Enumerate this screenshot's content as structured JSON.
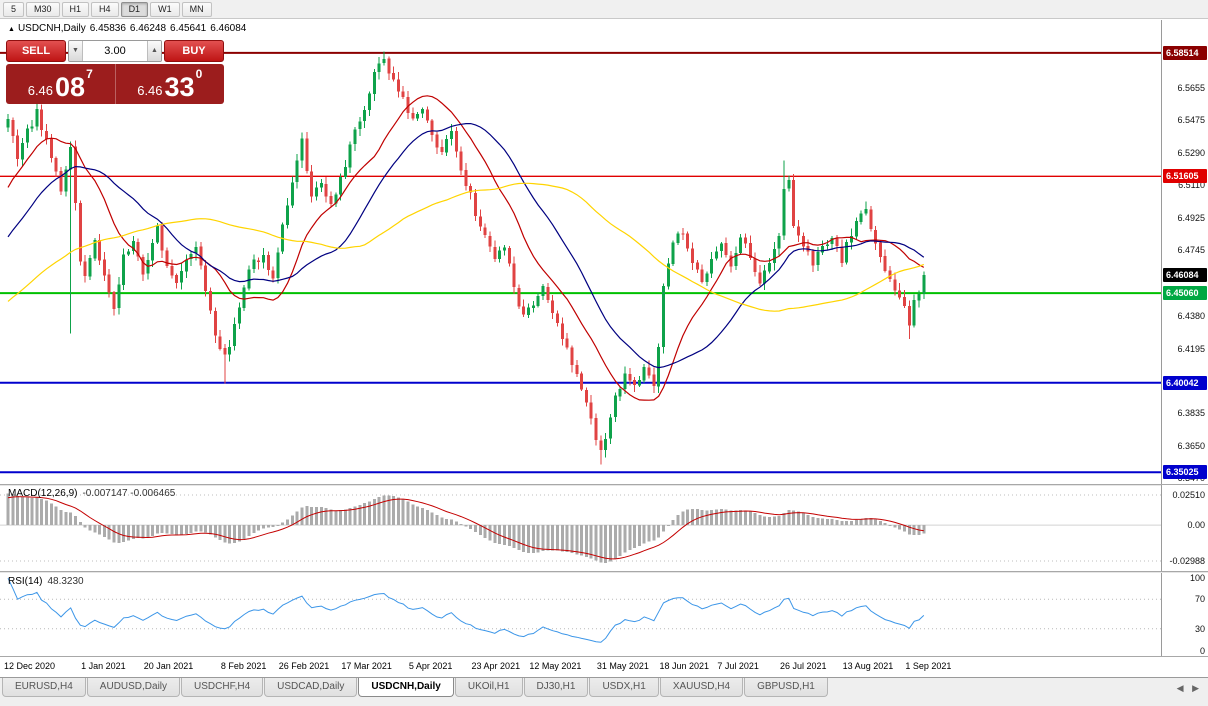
{
  "toolbar": {
    "timeframes": [
      {
        "label": "5",
        "active": false
      },
      {
        "label": "M30",
        "active": false
      },
      {
        "label": "H1",
        "active": false
      },
      {
        "label": "H4",
        "active": false
      },
      {
        "label": "D1",
        "active": true
      },
      {
        "label": "W1",
        "active": false
      },
      {
        "label": "MN",
        "active": false
      }
    ]
  },
  "chart_header": {
    "collapse_icon": "▲",
    "symbol": "USDCNH,Daily",
    "open": "6.45836",
    "high": "6.46248",
    "low": "6.45641",
    "close": "6.46084"
  },
  "trade_panel": {
    "sell_label": "SELL",
    "buy_label": "BUY",
    "volume": "3.00",
    "vol_down_icon": "▼",
    "vol_up_icon": "▲",
    "sell_price": {
      "base": "6.46",
      "big": "08",
      "sup": "7"
    },
    "buy_price": {
      "base": "6.46",
      "big": "33",
      "sup": "0"
    }
  },
  "price_axis": {
    "ticks": [
      "6.5655",
      "6.5475",
      "6.5290",
      "6.5110",
      "6.4925",
      "6.4745",
      "6.4380",
      "6.4195",
      "6.3835",
      "6.3650",
      "6.3470"
    ],
    "badges": [
      {
        "label": "6.58514",
        "value": 6.58514,
        "bg": "#8b0000"
      },
      {
        "label": "6.51605",
        "value": 6.51605,
        "bg": "#e00000"
      },
      {
        "label": "6.46084",
        "value": 6.46084,
        "bg": "#000000"
      },
      {
        "label": "6.45060",
        "value": 6.4506,
        "bg": "#00a843"
      },
      {
        "label": "6.40042",
        "value": 6.40042,
        "bg": "#0000cd"
      },
      {
        "label": "6.35025",
        "value": 6.35025,
        "bg": "#0000cd"
      }
    ]
  },
  "indicators": {
    "macd": {
      "title": "MACD(12,26,9)",
      "values": "-0.007147 -0.006465"
    },
    "rsi": {
      "title": "RSI(14)",
      "value": "48.3230"
    }
  },
  "tabs": [
    {
      "label": "EURUSD,H4",
      "active": false
    },
    {
      "label": "AUDUSD,Daily",
      "active": false
    },
    {
      "label": "USDCHF,H4",
      "active": false
    },
    {
      "label": "USDCAD,Daily",
      "active": false
    },
    {
      "label": "USDCNH,Daily",
      "active": true
    },
    {
      "label": "UKOil,H1",
      "active": false
    },
    {
      "label": "DJ30,H1",
      "active": false
    },
    {
      "label": "USDX,H1",
      "active": false
    },
    {
      "label": "XAUUSD,H4",
      "active": false
    },
    {
      "label": "GBPUSD,H1",
      "active": false
    }
  ],
  "tab_scroll": {
    "left_icon": "◀",
    "right_icon": "▶"
  },
  "chart_data": {
    "type": "candlestick",
    "symbol": "USDCNH",
    "timeframe": "Daily",
    "title": "USDCNH,Daily",
    "current": {
      "open": 6.45836,
      "high": 6.46248,
      "low": 6.45641,
      "close": 6.46084
    },
    "bars_total": 191,
    "y_range": {
      "min": 6.3448,
      "max": 6.6036
    },
    "date_labels": [
      [
        "12 Dec 2020",
        0
      ],
      [
        "1 Jan 2021",
        16
      ],
      [
        "20 Jan 2021",
        29
      ],
      [
        "8 Feb 2021",
        45
      ],
      [
        "26 Feb 2021",
        57
      ],
      [
        "17 Mar 2021",
        70
      ],
      [
        "5 Apr 2021",
        84
      ],
      [
        "23 Apr 2021",
        97
      ],
      [
        "12 May 2021",
        109
      ],
      [
        "31 May 2021",
        123
      ],
      [
        "18 Jun 2021",
        136
      ],
      [
        "7 Jul 2021",
        148
      ],
      [
        "26 Jul 2021",
        161
      ],
      [
        "13 Aug 2021",
        174
      ],
      [
        "1 Sep 2021",
        187
      ]
    ],
    "price_path_anchors": [
      [
        -60,
        6.4
      ],
      [
        -40,
        6.416
      ],
      [
        -25,
        6.438
      ],
      [
        -12,
        6.478
      ],
      [
        -5,
        6.525
      ],
      [
        -1,
        6.542
      ],
      [
        0,
        6.548
      ],
      [
        2,
        6.528
      ],
      [
        4,
        6.541
      ],
      [
        6,
        6.552
      ],
      [
        9,
        6.527
      ],
      [
        11,
        6.508
      ],
      [
        13,
        6.531
      ],
      [
        15,
        6.47
      ],
      [
        16,
        6.462
      ],
      [
        18,
        6.478
      ],
      [
        20,
        6.459
      ],
      [
        22,
        6.444
      ],
      [
        24,
        6.47
      ],
      [
        26,
        6.479
      ],
      [
        28,
        6.461
      ],
      [
        29,
        6.47
      ],
      [
        31,
        6.486
      ],
      [
        33,
        6.464
      ],
      [
        35,
        6.454
      ],
      [
        37,
        6.47
      ],
      [
        39,
        6.478
      ],
      [
        41,
        6.451
      ],
      [
        43,
        6.428
      ],
      [
        45,
        6.414
      ],
      [
        47,
        6.432
      ],
      [
        49,
        6.456
      ],
      [
        51,
        6.468
      ],
      [
        53,
        6.472
      ],
      [
        55,
        6.458
      ],
      [
        57,
        6.488
      ],
      [
        59,
        6.512
      ],
      [
        61,
        6.535
      ],
      [
        63,
        6.505
      ],
      [
        65,
        6.512
      ],
      [
        67,
        6.498
      ],
      [
        69,
        6.517
      ],
      [
        70,
        6.523
      ],
      [
        72,
        6.54
      ],
      [
        74,
        6.553
      ],
      [
        76,
        6.575
      ],
      [
        78,
        6.583
      ],
      [
        80,
        6.568
      ],
      [
        82,
        6.561
      ],
      [
        84,
        6.546
      ],
      [
        86,
        6.553
      ],
      [
        88,
        6.538
      ],
      [
        90,
        6.53
      ],
      [
        92,
        6.541
      ],
      [
        94,
        6.52
      ],
      [
        96,
        6.505
      ],
      [
        97,
        6.496
      ],
      [
        99,
        6.482
      ],
      [
        101,
        6.469
      ],
      [
        103,
        6.478
      ],
      [
        105,
        6.452
      ],
      [
        107,
        6.438
      ],
      [
        109,
        6.446
      ],
      [
        111,
        6.452
      ],
      [
        113,
        6.438
      ],
      [
        115,
        6.425
      ],
      [
        117,
        6.412
      ],
      [
        119,
        6.398
      ],
      [
        121,
        6.378
      ],
      [
        123,
        6.361
      ],
      [
        124,
        6.368
      ],
      [
        126,
        6.392
      ],
      [
        128,
        6.404
      ],
      [
        130,
        6.397
      ],
      [
        132,
        6.408
      ],
      [
        134,
        6.399
      ],
      [
        135,
        6.421
      ],
      [
        136,
        6.452
      ],
      [
        138,
        6.478
      ],
      [
        140,
        6.486
      ],
      [
        142,
        6.468
      ],
      [
        144,
        6.455
      ],
      [
        146,
        6.472
      ],
      [
        148,
        6.478
      ],
      [
        150,
        6.464
      ],
      [
        152,
        6.481
      ],
      [
        154,
        6.472
      ],
      [
        156,
        6.457
      ],
      [
        158,
        6.47
      ],
      [
        160,
        6.481
      ],
      [
        161,
        6.507
      ],
      [
        162,
        6.512
      ],
      [
        163,
        6.49
      ],
      [
        165,
        6.477
      ],
      [
        167,
        6.467
      ],
      [
        169,
        6.476
      ],
      [
        171,
        6.483
      ],
      [
        173,
        6.47
      ],
      [
        174,
        6.478
      ],
      [
        176,
        6.492
      ],
      [
        178,
        6.498
      ],
      [
        180,
        6.478
      ],
      [
        182,
        6.462
      ],
      [
        184,
        6.454
      ],
      [
        186,
        6.441
      ],
      [
        187,
        6.432
      ],
      [
        188,
        6.445
      ],
      [
        189,
        6.452
      ],
      [
        190,
        6.46084
      ]
    ],
    "wick_overrides": [
      {
        "bar": 45,
        "low": 6.4
      },
      {
        "bar": 78,
        "high": 6.5851
      },
      {
        "bar": 123,
        "low": 6.3545
      },
      {
        "bar": 13,
        "low": 6.428
      },
      {
        "bar": 161,
        "high": 6.525
      },
      {
        "bar": 187,
        "low": 6.425
      }
    ],
    "levels": [
      {
        "price": 6.58514,
        "color": "#8b0000",
        "width": 2
      },
      {
        "price": 6.51605,
        "color": "#e00000",
        "width": 1.4
      },
      {
        "price": 6.4506,
        "color": "#00c000",
        "width": 2
      },
      {
        "price": 6.40042,
        "color": "#0000cd",
        "width": 2
      },
      {
        "price": 6.35025,
        "color": "#0000cd",
        "width": 2
      }
    ],
    "moving_averages": [
      {
        "period": 15,
        "color": "#c00000"
      },
      {
        "period": 28,
        "color": "#000080"
      },
      {
        "period": 60,
        "color": "#ffd400"
      }
    ],
    "colors": {
      "up": "#0ea24a",
      "down": "#e04343",
      "background": "#ffffff"
    },
    "macd": {
      "fast": 12,
      "slow": 26,
      "signal_period": 9,
      "main_value": -0.007147,
      "signal_value": -0.006465,
      "histogram_color": "#ababab",
      "signal_color": "#c40000",
      "scale": [
        {
          "label": "0.02510",
          "v": 0.0251
        },
        {
          "label": "0.00",
          "v": 0
        },
        {
          "label": "-0.02988",
          "v": -0.02988
        }
      ],
      "range": {
        "max": 0.0251,
        "min": -0.02988
      }
    },
    "rsi": {
      "period": 14,
      "value": 48.323,
      "color": "#3c96e8",
      "scale": [
        {
          "label": "100",
          "v": 100
        },
        {
          "label": "70",
          "v": 70
        },
        {
          "label": "30",
          "v": 30
        },
        {
          "label": "0",
          "v": 0
        }
      ],
      "dotted_levels": [
        70,
        30
      ],
      "range": {
        "max": 100,
        "min": 0
      }
    }
  }
}
